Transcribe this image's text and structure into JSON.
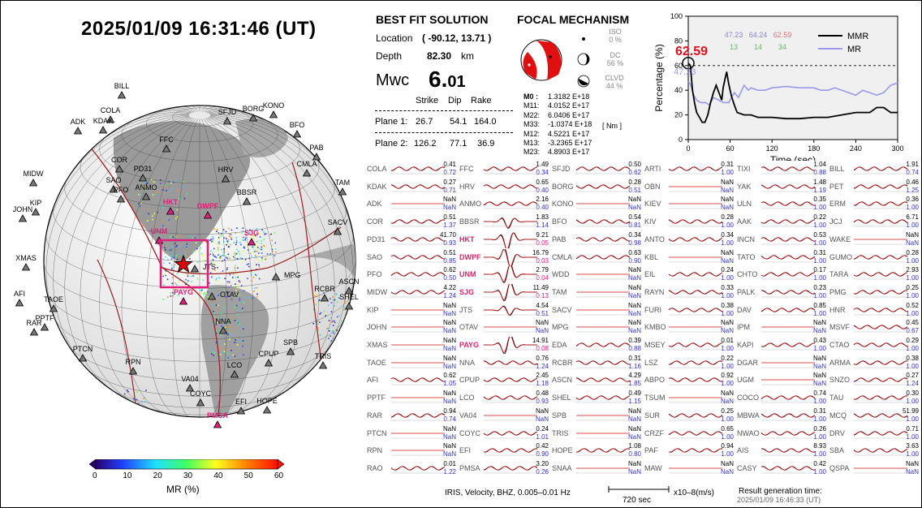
{
  "datetime": "2025/01/09  16:31:46 (UT)",
  "colorbar": {
    "ticks": [
      "0",
      "10",
      "20",
      "30",
      "40",
      "50",
      "60"
    ],
    "label": "MR (%)"
  },
  "globe": {
    "stations": [
      {
        "n": "BILL",
        "x": 150,
        "y": 118,
        "c": "k",
        "lx": 0,
        "ly": -5
      },
      {
        "n": "COLA",
        "x": 136,
        "y": 148,
        "c": "k",
        "lx": 0,
        "ly": -5
      },
      {
        "n": "ADK",
        "x": 96,
        "y": 162,
        "c": "k",
        "lx": 0,
        "ly": -5
      },
      {
        "n": "KDAK",
        "x": 127,
        "y": 161,
        "c": "k",
        "lx": 0,
        "ly": -5
      },
      {
        "n": "BORG",
        "x": 312,
        "y": 146,
        "c": "k",
        "lx": 0,
        "ly": -5
      },
      {
        "n": "KONO",
        "x": 337,
        "y": 142,
        "c": "k",
        "lx": 0,
        "ly": -5
      },
      {
        "n": "SFJD",
        "x": 280,
        "y": 150,
        "c": "k",
        "lx": 0,
        "ly": -5
      },
      {
        "n": "BFO",
        "x": 366,
        "y": 166,
        "c": "k",
        "lx": 0,
        "ly": -5
      },
      {
        "n": "FFC",
        "x": 205,
        "y": 184,
        "c": "k",
        "lx": 0,
        "ly": -5
      },
      {
        "n": "PAB",
        "x": 390,
        "y": 194,
        "c": "k",
        "lx": 0,
        "ly": -5
      },
      {
        "n": "COR",
        "x": 147,
        "y": 209,
        "c": "k",
        "lx": 0,
        "ly": -5
      },
      {
        "n": "CMLA",
        "x": 378,
        "y": 214,
        "c": "k",
        "lx": 0,
        "ly": -5
      },
      {
        "n": "PD31",
        "x": 176,
        "y": 220,
        "c": "k",
        "lx": 0,
        "ly": -5
      },
      {
        "n": "SAO",
        "x": 140,
        "y": 234,
        "c": "k",
        "lx": 0,
        "ly": -5
      },
      {
        "n": "HRV",
        "x": 278,
        "y": 221,
        "c": "k",
        "lx": 0,
        "ly": -5
      },
      {
        "n": "MIDW",
        "x": 41,
        "y": 226,
        "c": "k",
        "lx": 0,
        "ly": -5
      },
      {
        "n": "PFO",
        "x": 149,
        "y": 246,
        "c": "k",
        "lx": 0,
        "ly": -5
      },
      {
        "n": "ANMO",
        "x": 180,
        "y": 243,
        "c": "k",
        "lx": 0,
        "ly": -5
      },
      {
        "n": "TAM",
        "x": 422,
        "y": 237,
        "c": "k",
        "lx": 0,
        "ly": -5
      },
      {
        "n": "BBSR",
        "x": 304,
        "y": 249,
        "c": "k",
        "lx": 0,
        "ly": -5
      },
      {
        "n": "KIP",
        "x": 44,
        "y": 262,
        "c": "k",
        "lx": 0,
        "ly": -5
      },
      {
        "n": "JOHN",
        "x": 28,
        "y": 270,
        "c": "k",
        "lx": 0,
        "ly": -5
      },
      {
        "n": "HKT",
        "x": 210,
        "y": 261,
        "c": "p",
        "lx": 0,
        "ly": -5
      },
      {
        "n": "DWPF",
        "x": 256,
        "y": 266,
        "c": "p",
        "lx": 0,
        "ly": -5
      },
      {
        "n": "UNM",
        "x": 196,
        "y": 297,
        "c": "p",
        "lx": 0,
        "ly": -5
      },
      {
        "n": "SJG",
        "x": 310,
        "y": 299,
        "c": "p",
        "lx": 0,
        "ly": -5
      },
      {
        "n": "SACV",
        "x": 416,
        "y": 286,
        "c": "k",
        "lx": 0,
        "ly": -5
      },
      {
        "n": "XMAS",
        "x": 32,
        "y": 330,
        "c": "k",
        "lx": 0,
        "ly": -5
      },
      {
        "n": "JTS",
        "x": 240,
        "y": 332,
        "c": "k",
        "lx": 10,
        "ly": 4
      },
      {
        "n": "MPG",
        "x": 340,
        "y": 342,
        "c": "k",
        "lx": 10,
        "ly": 4
      },
      {
        "n": "ASCN",
        "x": 430,
        "y": 359,
        "c": "k",
        "lx": 0,
        "ly": -5
      },
      {
        "n": "OTAV",
        "x": 261,
        "y": 366,
        "c": "k",
        "lx": 10,
        "ly": 4
      },
      {
        "n": "PAYG",
        "x": 226,
        "y": 372,
        "c": "p",
        "lx": 0,
        "ly": -5
      },
      {
        "n": "RCBR",
        "x": 400,
        "y": 368,
        "c": "k",
        "lx": 0,
        "ly": -5
      },
      {
        "n": "SHEL",
        "x": 430,
        "y": 378,
        "c": "k",
        "lx": 0,
        "ly": -5
      },
      {
        "n": "AFI",
        "x": 24,
        "y": 374,
        "c": "k",
        "lx": 0,
        "ly": -5
      },
      {
        "n": "TAOE",
        "x": 66,
        "y": 381,
        "c": "k",
        "lx": 0,
        "ly": -5
      },
      {
        "n": "PPTF",
        "x": 55,
        "y": 404,
        "c": "k",
        "lx": 0,
        "ly": -5
      },
      {
        "n": "RAR",
        "x": 42,
        "y": 410,
        "c": "k",
        "lx": 0,
        "ly": -5
      },
      {
        "n": "NNA",
        "x": 275,
        "y": 408,
        "c": "k",
        "lx": 0,
        "ly": -5
      },
      {
        "n": "SPB",
        "x": 358,
        "y": 434,
        "c": "k",
        "lx": 0,
        "ly": -5
      },
      {
        "n": "PTCN",
        "x": 102,
        "y": 442,
        "c": "k",
        "lx": 0,
        "ly": -5
      },
      {
        "n": "CPUP",
        "x": 331,
        "y": 448,
        "c": "k",
        "lx": 0,
        "ly": -5
      },
      {
        "n": "TRIS",
        "x": 398,
        "y": 451,
        "c": "k",
        "lx": 0,
        "ly": -5
      },
      {
        "n": "RPN",
        "x": 164,
        "y": 458,
        "c": "k",
        "lx": 0,
        "ly": -5
      },
      {
        "n": "LCO",
        "x": 289,
        "y": 462,
        "c": "k",
        "lx": 0,
        "ly": -5
      },
      {
        "n": "VA04",
        "x": 234,
        "y": 479,
        "c": "k",
        "lx": 0,
        "ly": -5
      },
      {
        "n": "COYC",
        "x": 247,
        "y": 497,
        "c": "k",
        "lx": 0,
        "ly": -5
      },
      {
        "n": "HOPE",
        "x": 329,
        "y": 506,
        "c": "k",
        "lx": 0,
        "ly": -5
      },
      {
        "n": "EFI",
        "x": 297,
        "y": 507,
        "c": "k",
        "lx": 0,
        "ly": -5
      },
      {
        "n": "PMSA",
        "x": 268,
        "y": 524,
        "c": "p",
        "lx": 0,
        "ly": -5
      }
    ]
  },
  "best_fit": {
    "title": "BEST FIT SOLUTION",
    "location_label": "Location",
    "location_value": "( -90.12,  13.71 )",
    "depth_label": "Depth",
    "depth_value": "82.30",
    "depth_unit": "km",
    "mwc_label": "Mwc",
    "mwc_int": "6.",
    "mwc_frac": "01",
    "cols": [
      "Strike",
      "Dip",
      "Rake"
    ],
    "planes": [
      {
        "name": "Plane 1:",
        "strike": "26.7",
        "dip": "54.1",
        "rake": "164.0"
      },
      {
        "name": "Plane 2:",
        "strike": "126.2",
        "dip": "77.1",
        "rake": "36.9"
      }
    ]
  },
  "focal": {
    "title": "FOCAL MECHANISM",
    "iso_label": "ISO",
    "iso_value": "0  %",
    "dc_label": "DC",
    "dc_value": "56 %",
    "clvd_label": "CLVD",
    "clvd_value": "44 %",
    "tensor": [
      {
        "k": "M0 :",
        "v": "1.3182 E+18"
      },
      {
        "k": "M11:",
        "v": "4.0152 E+17"
      },
      {
        "k": "M22:",
        "v": "6.0406 E+17"
      },
      {
        "k": "M33:",
        "v": "-1.0374 E+18"
      },
      {
        "k": "M12:",
        "v": "4.5221 E+17"
      },
      {
        "k": "M13:",
        "v": "-3.2365 E+17"
      },
      {
        "k": "M23:",
        "v": "4.8903 E+17"
      }
    ],
    "unit": "[ Nm ]"
  },
  "timeplot": {
    "ylabel": "Percentage (%)",
    "xlabel": "Time (sec)",
    "xticks": [
      "0",
      "60",
      "120",
      "180",
      "240",
      "300"
    ],
    "yticks": [
      "0",
      "20",
      "40",
      "60",
      "80",
      "100"
    ],
    "peak_label": "62.59",
    "mr_label": "47.23",
    "top_vals": [
      "47.23",
      "64.24",
      "62.59"
    ],
    "bot_vals": [
      "13",
      "14",
      "34"
    ],
    "legend": [
      "MMR",
      "MR"
    ],
    "mmr": [
      [
        0,
        62
      ],
      [
        3,
        60
      ],
      [
        6,
        40
      ],
      [
        9,
        30
      ],
      [
        12,
        22
      ],
      [
        16,
        18
      ],
      [
        20,
        14
      ],
      [
        24,
        14
      ],
      [
        28,
        20
      ],
      [
        32,
        30
      ],
      [
        36,
        38
      ],
      [
        40,
        44
      ],
      [
        44,
        38
      ],
      [
        48,
        32
      ],
      [
        50,
        42
      ],
      [
        53,
        50
      ],
      [
        55,
        55
      ],
      [
        58,
        45
      ],
      [
        62,
        35
      ],
      [
        66,
        28
      ],
      [
        70,
        22
      ],
      [
        80,
        20
      ],
      [
        90,
        20
      ],
      [
        100,
        18
      ],
      [
        120,
        18
      ],
      [
        140,
        17
      ],
      [
        160,
        17
      ],
      [
        180,
        18
      ],
      [
        200,
        18
      ],
      [
        220,
        20
      ],
      [
        240,
        22
      ],
      [
        260,
        22
      ],
      [
        270,
        26
      ],
      [
        280,
        26
      ],
      [
        290,
        22
      ],
      [
        300,
        22
      ]
    ],
    "mr": [
      [
        0,
        47
      ],
      [
        3,
        45
      ],
      [
        8,
        36
      ],
      [
        12,
        32
      ],
      [
        18,
        30
      ],
      [
        25,
        30
      ],
      [
        30,
        28
      ],
      [
        36,
        34
      ],
      [
        44,
        32
      ],
      [
        50,
        30
      ],
      [
        58,
        30
      ],
      [
        66,
        38
      ],
      [
        72,
        34
      ],
      [
        80,
        44
      ],
      [
        86,
        40
      ],
      [
        90,
        42
      ],
      [
        100,
        40
      ],
      [
        110,
        40
      ],
      [
        120,
        42
      ],
      [
        140,
        43
      ],
      [
        160,
        42
      ],
      [
        180,
        42
      ],
      [
        190,
        40
      ],
      [
        200,
        40
      ],
      [
        210,
        42
      ],
      [
        220,
        40
      ],
      [
        230,
        38
      ],
      [
        240,
        36
      ],
      [
        250,
        40
      ],
      [
        260,
        38
      ],
      [
        270,
        36
      ],
      [
        280,
        38
      ],
      [
        290,
        44
      ],
      [
        300,
        46
      ]
    ]
  },
  "stations": [
    [
      [
        "COLA",
        "0.41",
        "0.72"
      ],
      [
        "FFC",
        "1.49",
        "0.34"
      ],
      [
        "SFJD",
        "0.50",
        "0.62"
      ],
      [
        "ARTI",
        "0.31",
        "1.00"
      ],
      [
        "TIXI",
        "1.04",
        "0.88"
      ],
      [
        "BILL",
        "1.91",
        "0.74"
      ]
    ],
    [
      [
        "KDAK",
        "0.27",
        "0.71"
      ],
      [
        "HRV",
        "0.65",
        "0.40"
      ],
      [
        "BORG",
        "0.28",
        "0.51"
      ],
      [
        "OBN",
        "NaN",
        "NaN"
      ],
      [
        "YAK",
        "1.48",
        "1.19"
      ],
      [
        "PET",
        "0.46",
        "1.25"
      ]
    ],
    [
      [
        "ADK",
        "NaN",
        "NaN"
      ],
      [
        "ANMO",
        "2.16",
        "0.40"
      ],
      [
        "KONO",
        "NaN",
        "NaN"
      ],
      [
        "KIEV",
        "NaN",
        "NaN"
      ],
      [
        "ULN",
        "0.35",
        "1.00"
      ],
      [
        "ERM",
        "0.36",
        "1.00"
      ]
    ],
    [
      [
        "COR",
        "0.51",
        "1.37"
      ],
      [
        "BBSR",
        "1.83",
        "1.14"
      ],
      [
        "BFO",
        "0.54",
        "0.81"
      ],
      [
        "KIV",
        "0.28",
        "1.00"
      ],
      [
        "AAK",
        "0.22",
        "1.00"
      ],
      [
        "JCJ",
        "6.71",
        "1.00"
      ]
    ],
    [
      [
        "PD31",
        "41.70",
        "0.93"
      ],
      [
        "HKT",
        "9.21",
        "0.05"
      ],
      [
        "PAB",
        "0.34",
        "0.98"
      ],
      [
        "ANTO",
        "0.34",
        "1.00"
      ],
      [
        "INCN",
        "0.53",
        "1.00"
      ],
      [
        "WAKE",
        "NaN",
        "NaN"
      ]
    ],
    [
      [
        "SAO",
        "0.51",
        "0.85"
      ],
      [
        "DWPF",
        "16.79",
        "0.03"
      ],
      [
        "CMLA",
        "0.63",
        "0.90"
      ],
      [
        "KBL",
        "NaN",
        "NaN"
      ],
      [
        "TATO",
        "0.31",
        "1.00"
      ],
      [
        "GUMO",
        "0.28",
        "1.00"
      ]
    ],
    [
      [
        "PFO",
        "0.62",
        "0.50"
      ],
      [
        "UNM",
        "2.79",
        "0.04"
      ],
      [
        "WDD",
        "NaN",
        "NaN"
      ],
      [
        "EIL",
        "0.24",
        "1.00"
      ],
      [
        "CHTO",
        "0.17",
        "1.00"
      ],
      [
        "TARA",
        "2.93",
        "1.00"
      ]
    ],
    [
      [
        "MIDW",
        "4.22",
        "1.24"
      ],
      [
        "SJG",
        "11.49",
        "0.13"
      ],
      [
        "TAM",
        "NaN",
        "NaN"
      ],
      [
        "RAYN",
        "0.33",
        "1.00"
      ],
      [
        "PALK",
        "0.23",
        "1.00"
      ],
      [
        "PMG",
        "0.25",
        "1.00"
      ]
    ],
    [
      [
        "KIP",
        "NaN",
        "NaN"
      ],
      [
        "JTS",
        "4.54",
        "0.51"
      ],
      [
        "SACV",
        "NaN",
        "NaN"
      ],
      [
        "FURI",
        "0.38",
        "1.00"
      ],
      [
        "DAV",
        "0.85",
        "1.00"
      ],
      [
        "HNR",
        "0.52",
        "1.00"
      ]
    ],
    [
      [
        "JOHN",
        "NaN",
        "NaN"
      ],
      [
        "OTAV",
        "NaN",
        "NaN"
      ],
      [
        "MPG",
        "NaN",
        "NaN"
      ],
      [
        "KMBO",
        "NaN",
        "NaN"
      ],
      [
        "IPM",
        "NaN",
        "NaN"
      ],
      [
        "MSVF",
        "0.45",
        "0.67"
      ]
    ],
    [
      [
        "XMAS",
        "NaN",
        "NaN"
      ],
      [
        "PAYG",
        "14.91",
        "0.08"
      ],
      [
        "EDA",
        "0.39",
        "0.88"
      ],
      [
        "MSEY",
        "0.01",
        "1.00"
      ],
      [
        "KAPI",
        "0.43",
        "1.00"
      ],
      [
        "CTAO",
        "0.29",
        "1.00"
      ]
    ],
    [
      [
        "TAOE",
        "NaN",
        "NaN"
      ],
      [
        "NNA",
        "0.76",
        "1.24"
      ],
      [
        "RCBR",
        "0.31",
        "1.16"
      ],
      [
        "LSZ",
        "0.22",
        "1.00"
      ],
      [
        "DGAR",
        "NaN",
        "NaN"
      ],
      [
        "ARMA",
        "0.38",
        "1.00"
      ]
    ],
    [
      [
        "AFI",
        "0.62",
        "1.05"
      ],
      [
        "CPUP",
        "2.45",
        "1.18"
      ],
      [
        "ASCN",
        "4.29",
        "1.85"
      ],
      [
        "ABPO",
        "0.92",
        "1.00"
      ],
      [
        "UGM",
        "NaN",
        "NaN"
      ],
      [
        "SNZO",
        "0.27",
        "1.24"
      ]
    ],
    [
      [
        "PPTF",
        "NaN",
        "NaN"
      ],
      [
        "LCO",
        "0.48",
        "0.93"
      ],
      [
        "SHEL",
        "0.49",
        "1.15"
      ],
      [
        "TSUM",
        "NaN",
        "NaN"
      ],
      [
        "COCO",
        "0.74",
        "1.00"
      ],
      [
        "TAU",
        "0.30",
        "1.00"
      ]
    ],
    [
      [
        "RAR",
        "0.94",
        "0.74"
      ],
      [
        "VA04",
        "NaN",
        "NaN"
      ],
      [
        "SPB",
        "NaN",
        "NaN"
      ],
      [
        "SUR",
        "0.25",
        "1.00"
      ],
      [
        "MBWA",
        "0.31",
        "1.00"
      ],
      [
        "MCQ",
        "51.99",
        "1.00"
      ]
    ],
    [
      [
        "PTCN",
        "NaN",
        "NaN"
      ],
      [
        "COYC",
        "0.24",
        "1.01"
      ],
      [
        "TRIS",
        "NaN",
        "NaN"
      ],
      [
        "CRZF",
        "0.65",
        "1.00"
      ],
      [
        "NWAO",
        "0.26",
        "1.00"
      ],
      [
        "DRV",
        "0.71",
        "1.00"
      ]
    ],
    [
      [
        "RPN",
        "NaN",
        "NaN"
      ],
      [
        "EFI",
        "0.42",
        "0.90"
      ],
      [
        "HOPE",
        "1.08",
        "0.80"
      ],
      [
        "PAF",
        "0.94",
        "1.00"
      ],
      [
        "AIS",
        "8.93",
        "1.00"
      ],
      [
        "SBA",
        "3.63",
        "1.00"
      ]
    ],
    [
      [
        "RAO",
        "0.01",
        "1.22"
      ],
      [
        "PMSA",
        "3.20",
        "0.26"
      ],
      [
        "SNAA",
        "NaN",
        "NaN"
      ],
      [
        "MAW",
        "NaN",
        "NaN"
      ],
      [
        "CASY",
        "0.42",
        "1.00"
      ],
      [
        "QSPA",
        "NaN",
        "NaN"
      ]
    ]
  ],
  "footer": {
    "info": "IRIS, Velocity,   BHZ, 0.005–0.01 Hz",
    "scale_time": "720 sec",
    "scale_amp": "x10–8(m/s)",
    "result_label": "Result generation time:",
    "result_time": "2025/01/09 16:46:33 (UT)"
  }
}
